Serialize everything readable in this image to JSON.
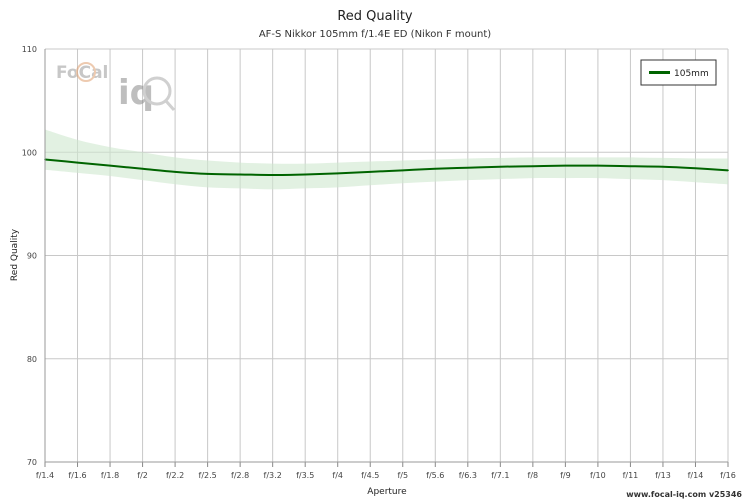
{
  "chart_data": {
    "type": "line",
    "title": "Red Quality",
    "subtitle": "AF-S Nikkor 105mm f/1.4E ED (Nikon F mount)",
    "xlabel": "Aperture",
    "ylabel": "Red Quality",
    "ylim": [
      70,
      110
    ],
    "yticks": [
      70,
      80,
      90,
      100,
      110
    ],
    "categories": [
      "f/1.4",
      "f/1.6",
      "f/1.8",
      "f/2",
      "f/2.2",
      "f/2.5",
      "f/2.8",
      "f/3.2",
      "f/3.5",
      "f/4",
      "f/4.5",
      "f/5",
      "f/5.6",
      "f/6.3",
      "f/7.1",
      "f/8",
      "f/9",
      "f/10",
      "f/11",
      "f/13",
      "f/14",
      "f/16"
    ],
    "grid": true,
    "legend_position": "top-right",
    "series": [
      {
        "name": "105mm",
        "color": "#006400",
        "band_color": "#cfe8cf",
        "values": [
          99.3,
          99.0,
          98.7,
          98.4,
          98.1,
          97.9,
          97.85,
          97.8,
          97.85,
          97.95,
          98.1,
          98.25,
          98.4,
          98.5,
          98.6,
          98.65,
          98.7,
          98.7,
          98.65,
          98.6,
          98.45,
          98.25
        ],
        "band_upper": [
          102.2,
          101.2,
          100.5,
          100.0,
          99.5,
          99.2,
          99.0,
          98.9,
          98.9,
          99.0,
          99.1,
          99.2,
          99.3,
          99.4,
          99.45,
          99.5,
          99.5,
          99.5,
          99.5,
          99.45,
          99.4,
          99.4
        ],
        "band_lower": [
          98.3,
          98.0,
          97.7,
          97.3,
          96.9,
          96.6,
          96.5,
          96.4,
          96.5,
          96.6,
          96.8,
          97.0,
          97.15,
          97.3,
          97.4,
          97.5,
          97.5,
          97.5,
          97.4,
          97.3,
          97.1,
          96.9
        ]
      }
    ]
  },
  "watermark": {
    "logo_text_focal": "FoCal",
    "logo_text_iq": "iq"
  },
  "footer": {
    "credit": "www.focal-iq.com  v25346"
  }
}
